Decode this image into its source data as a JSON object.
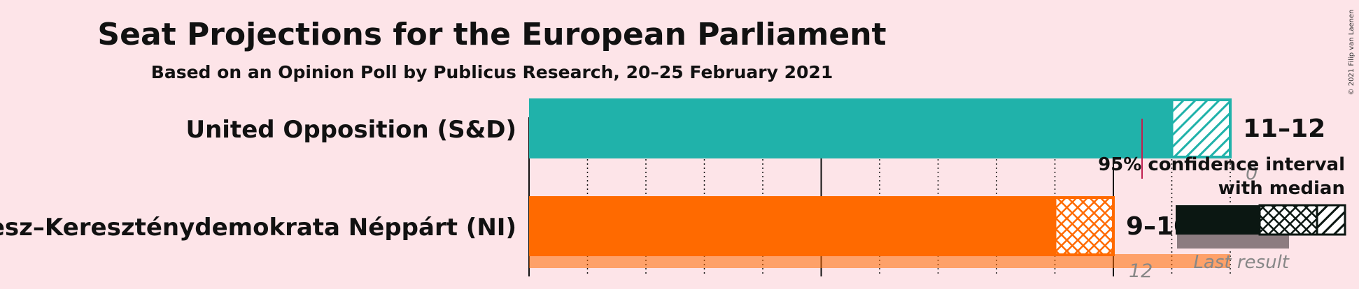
{
  "title": "Seat Projections for the European Parliament",
  "subtitle": "Based on an Opinion Poll by Publicus Research, 20–25 February 2021",
  "copyright": "© 2021 Filip van Laenen",
  "legend": {
    "ci_text_line1": "95% confidence interval",
    "ci_text_line2": "with median",
    "last_result_text": "Last result"
  },
  "chart_data": {
    "type": "bar",
    "orientation": "horizontal",
    "xlim": [
      0,
      12
    ],
    "grid": true,
    "categories": [
      "United Opposition (S&D)",
      "Fidesz–Kereszténydemokrata Néppárt (NI)"
    ],
    "series": [
      {
        "party": "United Opposition (S&D)",
        "color": "#20b2aa",
        "ci_low": 11,
        "median": 11,
        "ci_high": 12,
        "range_label": "11–12",
        "last_result": 0,
        "last_result_label": "0"
      },
      {
        "party": "Fidesz–Kereszténydemokrata Néppárt (NI)",
        "color": "#ff6a00",
        "ci_low": 9,
        "median": 10,
        "ci_high": 10,
        "range_label": "9–10",
        "last_result": 12,
        "last_result_label": "12"
      }
    ]
  }
}
